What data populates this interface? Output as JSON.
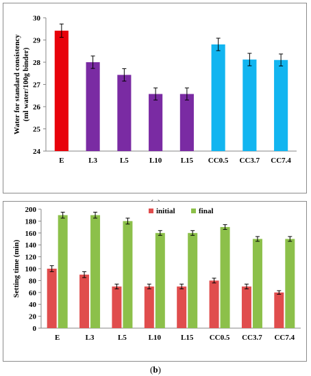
{
  "chart_data": [
    {
      "type": "bar",
      "panel_label": "a",
      "ylabel_line1": "Water for standard consistency",
      "ylabel_line2": "(ml water/100g binder)",
      "categories": [
        "E",
        "L3",
        "L5",
        "L10",
        "L15",
        "CC0.5",
        "CC3.7",
        "CC7.4"
      ],
      "values": [
        29.42,
        28.0,
        27.43,
        26.57,
        26.57,
        28.8,
        28.12,
        28.1
      ],
      "errors": [
        0.3,
        0.28,
        0.28,
        0.27,
        0.27,
        0.28,
        0.28,
        0.27
      ],
      "bar_colors": [
        "#e8020b",
        "#7a2ba3",
        "#7a2ba3",
        "#7a2ba3",
        "#7a2ba3",
        "#12b5f0",
        "#12b5f0",
        "#12b5f0"
      ],
      "ylim": [
        24,
        30
      ],
      "yticks": [
        24,
        25,
        26,
        27,
        28,
        29,
        30
      ],
      "grid": false
    },
    {
      "type": "bar",
      "panel_label": "b",
      "ylabel": "Setting time (min)",
      "categories": [
        "E",
        "L3",
        "L5",
        "L10",
        "L15",
        "CC0.5",
        "CC3.7",
        "CC7.4"
      ],
      "series": [
        {
          "name": "initial",
          "color": "#e04d4d",
          "values": [
            100,
            90,
            70,
            70,
            70,
            80,
            70,
            60
          ],
          "errors": [
            5,
            5,
            4,
            4,
            4,
            4,
            4,
            3
          ]
        },
        {
          "name": "final",
          "color": "#8cc04a",
          "values": [
            190,
            190,
            180,
            160,
            160,
            170,
            150,
            150
          ],
          "errors": [
            5,
            5,
            5,
            4,
            4,
            4,
            4,
            4
          ]
        }
      ],
      "ylim": [
        0,
        200
      ],
      "yticks": [
        0,
        20,
        40,
        60,
        80,
        100,
        120,
        140,
        160,
        180,
        200
      ],
      "legend_position": "top-center",
      "grid": false
    }
  ]
}
